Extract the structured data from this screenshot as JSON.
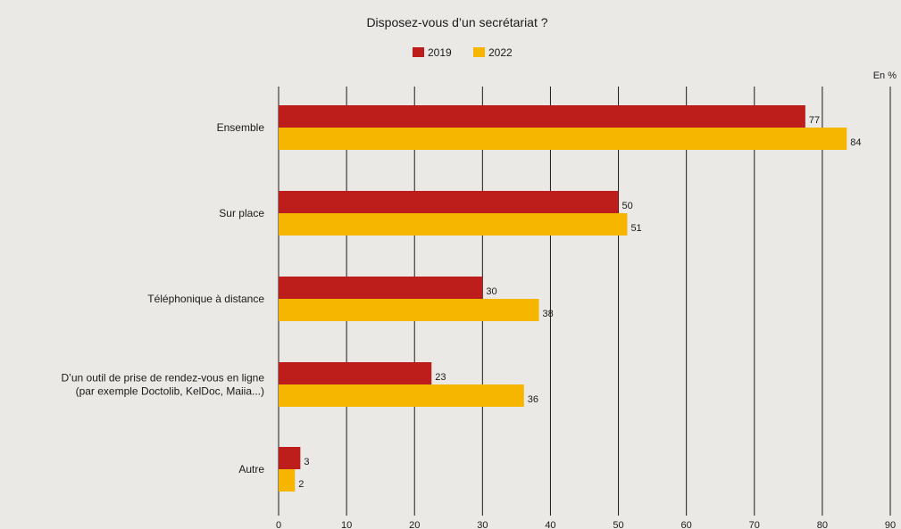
{
  "chart_data": {
    "type": "bar",
    "orientation": "horizontal",
    "title": "Disposez-vous d’un secrétariat ?",
    "unit": "En %",
    "categories": [
      [
        "Ensemble"
      ],
      [
        "Sur place"
      ],
      [
        "Téléphonique à distance"
      ],
      [
        "D’un outil de prise de rendez-vous en ligne",
        "(par exemple Doctolib, KelDoc, Maiia...)"
      ],
      [
        "Autre"
      ]
    ],
    "series": [
      {
        "name": "2019",
        "color": "#bd1e1c",
        "values": [
          77,
          50,
          30,
          23,
          3
        ],
        "plot_values": [
          77.5,
          50,
          30,
          22.5,
          3.2
        ]
      },
      {
        "name": "2022",
        "color": "#f6b600",
        "values": [
          84,
          51,
          38,
          36,
          2
        ],
        "plot_values": [
          83.6,
          51.3,
          38.3,
          36.1,
          2.4
        ]
      }
    ],
    "xlim": [
      0,
      90
    ],
    "xticks": [
      0,
      10,
      20,
      30,
      40,
      50,
      60,
      70,
      80,
      90
    ],
    "grid": true,
    "legend_position": "top-center"
  }
}
